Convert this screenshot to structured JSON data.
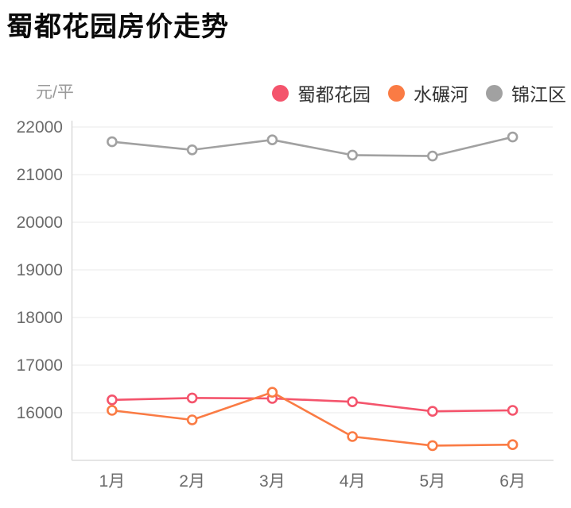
{
  "title": "蜀都花园房价走势",
  "chart_data": {
    "type": "line",
    "title": "蜀都花园房价走势",
    "ylabel": "元/平",
    "xlabel": "",
    "categories": [
      "1月",
      "2月",
      "3月",
      "4月",
      "5月",
      "6月"
    ],
    "series": [
      {
        "key": "shudu-huayuan",
        "name": "蜀都花园",
        "color": "#F4546C",
        "values": [
          16270,
          16310,
          16300,
          16230,
          16030,
          16050
        ]
      },
      {
        "key": "shuinianhe",
        "name": "水碾河",
        "color": "#FA7B44",
        "values": [
          16050,
          15850,
          16430,
          15500,
          15310,
          15330
        ]
      },
      {
        "key": "jinjiangqu",
        "name": "锦江区",
        "color": "#A1A1A1",
        "values": [
          21690,
          21520,
          21730,
          21410,
          21390,
          21790
        ]
      }
    ],
    "ylim": [
      15000,
      22000
    ],
    "yticks": [
      16000,
      17000,
      18000,
      19000,
      20000,
      21000,
      22000
    ],
    "grid": true,
    "legend_position": "top-right",
    "marker": "hollow-circle",
    "draw_order": [
      2,
      0,
      1
    ]
  },
  "colors": {
    "background": "#ffffff",
    "title_text": "#0a0a0a",
    "axis_label": "#6b6b6b",
    "unit_label": "#9a9a9a",
    "legend_text": "#333333",
    "grid_line": "#e9e9e9",
    "axis_line": "#d5d5d5",
    "marker_fill": "#ffffff"
  }
}
